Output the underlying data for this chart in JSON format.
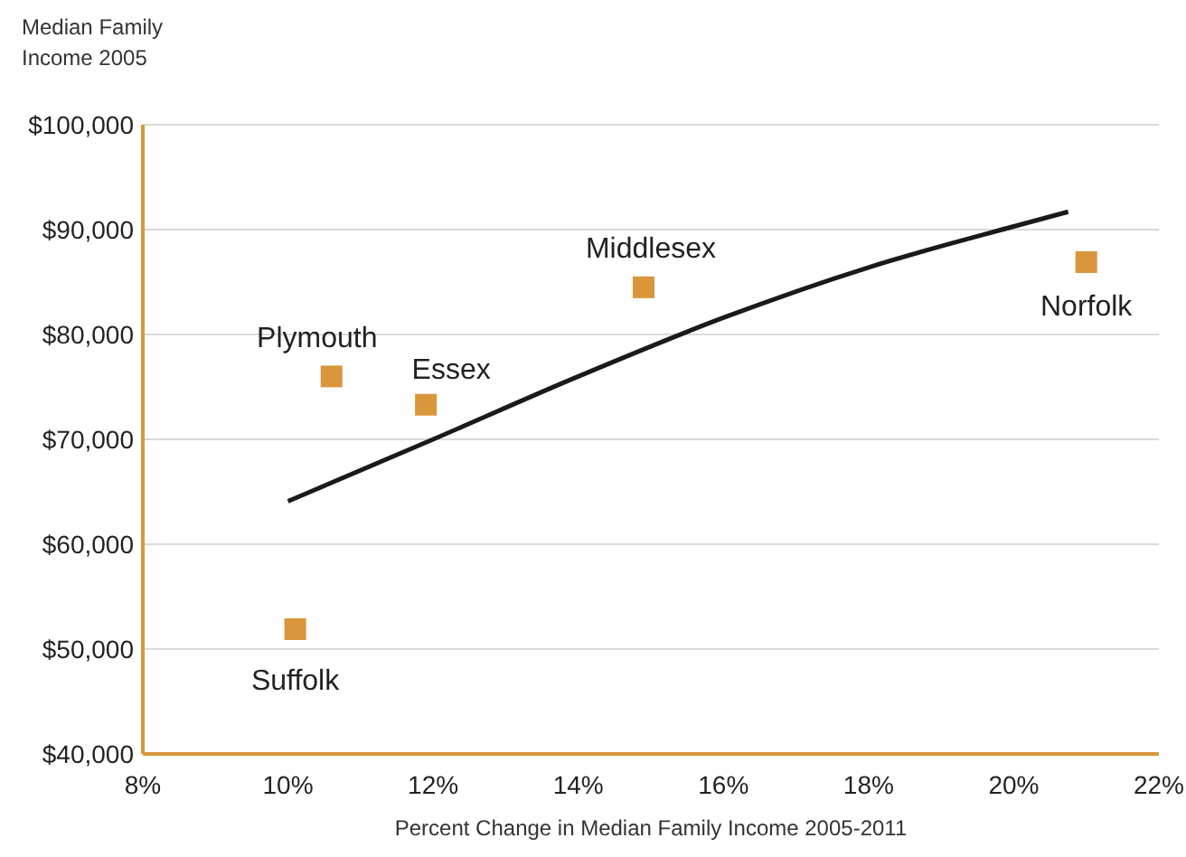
{
  "chart_data": {
    "type": "scatter",
    "xlabel": "Percent Change in Median Family Income 2005-2011",
    "ylabel": "Median Family Income 2005",
    "xlim": [
      8,
      22
    ],
    "xticks": [
      {
        "value": 8,
        "label": "8%"
      },
      {
        "value": 10,
        "label": "10%"
      },
      {
        "value": 12,
        "label": "12%"
      },
      {
        "value": 14,
        "label": "14%"
      },
      {
        "value": 16,
        "label": "16%"
      },
      {
        "value": 18,
        "label": "18%"
      },
      {
        "value": 20,
        "label": "20%"
      },
      {
        "value": 22,
        "label": "22%"
      }
    ],
    "ylim": [
      40000,
      100000
    ],
    "yticks": [
      {
        "value": 40000,
        "label": "$40,000"
      },
      {
        "value": 50000,
        "label": "$50,000"
      },
      {
        "value": 60000,
        "label": "$60,000"
      },
      {
        "value": 70000,
        "label": "$70,000"
      },
      {
        "value": 80000,
        "label": "$80,000"
      },
      {
        "value": 90000,
        "label": "$90,000"
      },
      {
        "value": 100000,
        "label": "$100,000"
      }
    ],
    "grid": "y",
    "marker": "square",
    "series": [
      {
        "color": "#d9963a",
        "x": [
          10.6,
          11.9,
          14.9,
          21.0,
          10.1
        ],
        "values": [
          76000,
          73300,
          84500,
          86900,
          51900
        ]
      },
      {
        "type": "line",
        "color": "#1a1a1a",
        "marker": "none",
        "x": [
          10.0,
          12.0,
          14.0,
          16.0,
          18.0,
          20.0,
          20.75
        ],
        "values": [
          64100,
          70000,
          76000,
          81600,
          86400,
          90300,
          91700
        ]
      }
    ],
    "annotations": [
      {
        "text": "Plymouth",
        "x": 10.6,
        "y": 76000
      },
      {
        "text": "Essex",
        "x": 11.9,
        "y": 73300
      },
      {
        "text": "Middlesex",
        "x": 14.9,
        "y": 84500
      },
      {
        "text": "Norfolk",
        "x": 21.0,
        "y": 86900
      },
      {
        "text": "Suffolk",
        "x": 10.1,
        "y": 51900
      }
    ]
  }
}
